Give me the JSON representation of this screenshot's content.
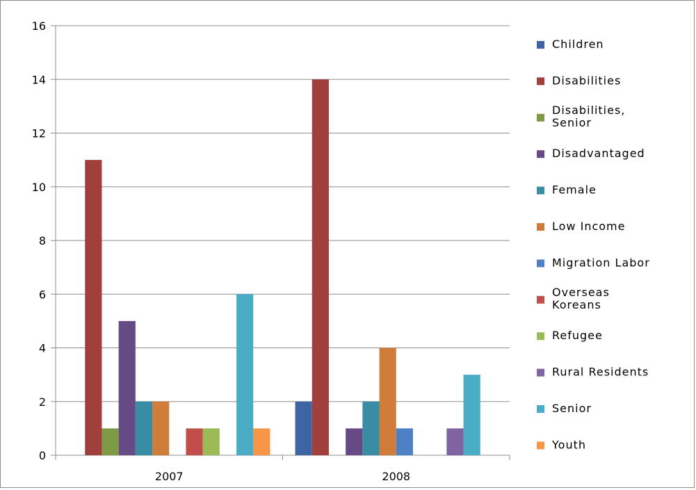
{
  "chart_data": {
    "type": "bar",
    "categories": [
      "2007",
      "2008"
    ],
    "ylim": [
      0,
      16
    ],
    "yticks": [
      0,
      2,
      4,
      6,
      8,
      10,
      12,
      14,
      16
    ],
    "grid": true,
    "legend_position": "right",
    "series": [
      {
        "name": "Children",
        "color": "#3f64a3",
        "values": [
          0,
          2
        ]
      },
      {
        "name": "Disabilities",
        "color": "#a03f3c",
        "values": [
          11,
          14
        ]
      },
      {
        "name": "Disabilities, Senior",
        "color": "#7f9a45",
        "values": [
          1,
          0
        ]
      },
      {
        "name": "Disadvantaged",
        "color": "#664a85",
        "values": [
          5,
          1
        ]
      },
      {
        "name": "Female",
        "color": "#388ca3",
        "values": [
          2,
          2
        ]
      },
      {
        "name": "Low Income",
        "color": "#d07c3a",
        "values": [
          2,
          4
        ]
      },
      {
        "name": "Migration Labor",
        "color": "#4e81c3",
        "values": [
          0,
          1
        ]
      },
      {
        "name": "Overseas Koreans",
        "color": "#c24e4c",
        "values": [
          1,
          0
        ]
      },
      {
        "name": "Refugee",
        "color": "#9bbb59",
        "values": [
          1,
          0
        ]
      },
      {
        "name": "Rural Residents",
        "color": "#8064a2",
        "values": [
          0,
          1
        ]
      },
      {
        "name": "Senior",
        "color": "#4bacc6",
        "values": [
          6,
          3
        ]
      },
      {
        "name": "Youth",
        "color": "#f79646",
        "values": [
          1,
          0
        ]
      }
    ]
  }
}
